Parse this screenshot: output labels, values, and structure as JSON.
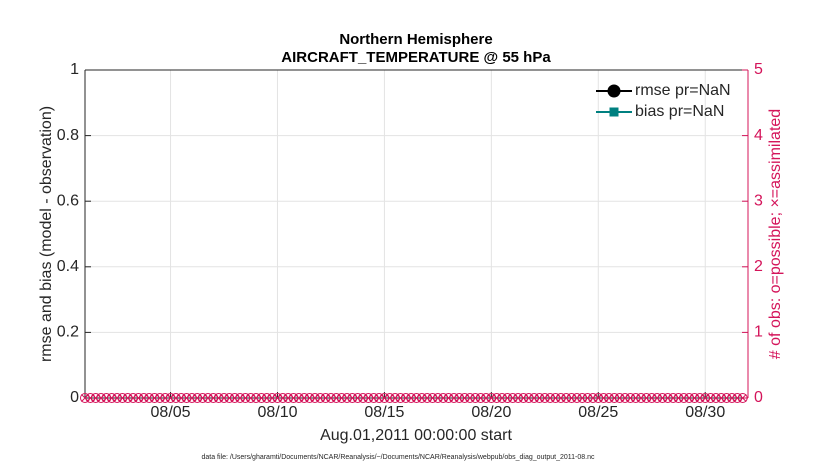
{
  "chart_data": {
    "type": "line",
    "title": [
      "Northern Hemisphere",
      "AIRCRAFT_TEMPERATURE @ 55 hPa"
    ],
    "xlabel": "Aug.01,2011 00:00:00 start",
    "ylabel": "rmse and bias (model - observation)",
    "y2label": "# of obs: o=possible; ×=assimilated",
    "footnote": "data file: /Users/gharamti/Documents/NCAR/Reanalysis/~/Documents/NCAR/Reanalysis/webpub/obs_diag_output_2011-08.nc",
    "grid": true,
    "legend": "upper right",
    "xlim": [
      1,
      32
    ],
    "xticks": [
      {
        "value": 5,
        "label": "08/05"
      },
      {
        "value": 10,
        "label": "08/10"
      },
      {
        "value": 15,
        "label": "08/15"
      },
      {
        "value": 20,
        "label": "08/20"
      },
      {
        "value": 25,
        "label": "08/25"
      },
      {
        "value": 30,
        "label": "08/30"
      }
    ],
    "ylim": [
      0,
      1
    ],
    "yticks": [
      0,
      0.2,
      0.4,
      0.6,
      0.8,
      1
    ],
    "y2lim": [
      0,
      5
    ],
    "y2ticks": [
      0,
      1,
      2,
      3,
      4,
      5
    ],
    "y2color": "#d4145a",
    "x": [
      1,
      1.25,
      1.5,
      1.75,
      2,
      2.25,
      2.5,
      2.75,
      3,
      3.25,
      3.5,
      3.75,
      4,
      4.25,
      4.5,
      4.75,
      5,
      5.25,
      5.5,
      5.75,
      6,
      6.25,
      6.5,
      6.75,
      7,
      7.25,
      7.5,
      7.75,
      8,
      8.25,
      8.5,
      8.75,
      9,
      9.25,
      9.5,
      9.75,
      10,
      10.25,
      10.5,
      10.75,
      11,
      11.25,
      11.5,
      11.75,
      12,
      12.25,
      12.5,
      12.75,
      13,
      13.25,
      13.5,
      13.75,
      14,
      14.25,
      14.5,
      14.75,
      15,
      15.25,
      15.5,
      15.75,
      16,
      16.25,
      16.5,
      16.75,
      17,
      17.25,
      17.5,
      17.75,
      18,
      18.25,
      18.5,
      18.75,
      19,
      19.25,
      19.5,
      19.75,
      20,
      20.25,
      20.5,
      20.75,
      21,
      21.25,
      21.5,
      21.75,
      22,
      22.25,
      22.5,
      22.75,
      23,
      23.25,
      23.5,
      23.75,
      24,
      24.25,
      24.5,
      24.75,
      25,
      25.25,
      25.5,
      25.75,
      26,
      26.25,
      26.5,
      26.75,
      27,
      27.25,
      27.5,
      27.75,
      28,
      28.25,
      28.5,
      28.75,
      29,
      29.25,
      29.5,
      29.75,
      30,
      30.25,
      30.5,
      30.75,
      31,
      31.25,
      31.5,
      31.75
    ],
    "series": [
      {
        "name": "rmse pr=NaN",
        "color": "#000000",
        "marker": "circle",
        "values": [
          null,
          null,
          null,
          null,
          null,
          null,
          null,
          null,
          null,
          null,
          null,
          null,
          null,
          null,
          null,
          null,
          null,
          null,
          null,
          null,
          null,
          null,
          null,
          null,
          null,
          null,
          null,
          null,
          null,
          null,
          null,
          null,
          null,
          null,
          null,
          null,
          null,
          null,
          null,
          null,
          null,
          null,
          null,
          null,
          null,
          null,
          null,
          null,
          null,
          null,
          null,
          null,
          null,
          null,
          null,
          null,
          null,
          null,
          null,
          null,
          null,
          null,
          null,
          null,
          null,
          null,
          null,
          null,
          null,
          null,
          null,
          null,
          null,
          null,
          null,
          null,
          null,
          null,
          null,
          null,
          null,
          null,
          null,
          null,
          null,
          null,
          null,
          null,
          null,
          null,
          null,
          null,
          null,
          null,
          null,
          null,
          null,
          null,
          null,
          null,
          null,
          null,
          null,
          null,
          null,
          null,
          null,
          null,
          null,
          null,
          null,
          null,
          null,
          null,
          null,
          null,
          null,
          null,
          null,
          null,
          null,
          null,
          null,
          null
        ]
      },
      {
        "name": "bias pr=NaN",
        "color": "#008080",
        "marker": "square",
        "values": [
          null,
          null,
          null,
          null,
          null,
          null,
          null,
          null,
          null,
          null,
          null,
          null,
          null,
          null,
          null,
          null,
          null,
          null,
          null,
          null,
          null,
          null,
          null,
          null,
          null,
          null,
          null,
          null,
          null,
          null,
          null,
          null,
          null,
          null,
          null,
          null,
          null,
          null,
          null,
          null,
          null,
          null,
          null,
          null,
          null,
          null,
          null,
          null,
          null,
          null,
          null,
          null,
          null,
          null,
          null,
          null,
          null,
          null,
          null,
          null,
          null,
          null,
          null,
          null,
          null,
          null,
          null,
          null,
          null,
          null,
          null,
          null,
          null,
          null,
          null,
          null,
          null,
          null,
          null,
          null,
          null,
          null,
          null,
          null,
          null,
          null,
          null,
          null,
          null,
          null,
          null,
          null,
          null,
          null,
          null,
          null,
          null,
          null,
          null,
          null,
          null,
          null,
          null,
          null,
          null,
          null,
          null,
          null,
          null,
          null,
          null,
          null,
          null,
          null,
          null,
          null,
          null,
          null,
          null,
          null,
          null,
          null,
          null,
          null
        ]
      },
      {
        "color": "#d4145a",
        "marker": "circle",
        "axis": "y2",
        "values": [
          0,
          0,
          0,
          0,
          0,
          0,
          0,
          0,
          0,
          0,
          0,
          0,
          0,
          0,
          0,
          0,
          0,
          0,
          0,
          0,
          0,
          0,
          0,
          0,
          0,
          0,
          0,
          0,
          0,
          0,
          0,
          0,
          0,
          0,
          0,
          0,
          0,
          0,
          0,
          0,
          0,
          0,
          0,
          0,
          0,
          0,
          0,
          0,
          0,
          0,
          0,
          0,
          0,
          0,
          0,
          0,
          0,
          0,
          0,
          0,
          0,
          0,
          0,
          0,
          0,
          0,
          0,
          0,
          0,
          0,
          0,
          0,
          0,
          0,
          0,
          0,
          0,
          0,
          0,
          0,
          0,
          0,
          0,
          0,
          0,
          0,
          0,
          0,
          0,
          0,
          0,
          0,
          0,
          0,
          0,
          0,
          0,
          0,
          0,
          0,
          0,
          0,
          0,
          0,
          0,
          0,
          0,
          0,
          0,
          0,
          0,
          0,
          0,
          0,
          0,
          0,
          0,
          0,
          0,
          0,
          0,
          0,
          0,
          0
        ]
      },
      {
        "color": "#d4145a",
        "marker": "x",
        "axis": "y2",
        "values": [
          0,
          0,
          0,
          0,
          0,
          0,
          0,
          0,
          0,
          0,
          0,
          0,
          0,
          0,
          0,
          0,
          0,
          0,
          0,
          0,
          0,
          0,
          0,
          0,
          0,
          0,
          0,
          0,
          0,
          0,
          0,
          0,
          0,
          0,
          0,
          0,
          0,
          0,
          0,
          0,
          0,
          0,
          0,
          0,
          0,
          0,
          0,
          0,
          0,
          0,
          0,
          0,
          0,
          0,
          0,
          0,
          0,
          0,
          0,
          0,
          0,
          0,
          0,
          0,
          0,
          0,
          0,
          0,
          0,
          0,
          0,
          0,
          0,
          0,
          0,
          0,
          0,
          0,
          0,
          0,
          0,
          0,
          0,
          0,
          0,
          0,
          0,
          0,
          0,
          0,
          0,
          0,
          0,
          0,
          0,
          0,
          0,
          0,
          0,
          0,
          0,
          0,
          0,
          0,
          0,
          0,
          0,
          0,
          0,
          0,
          0,
          0,
          0,
          0,
          0,
          0,
          0,
          0,
          0,
          0,
          0,
          0,
          0,
          0
        ]
      }
    ]
  }
}
